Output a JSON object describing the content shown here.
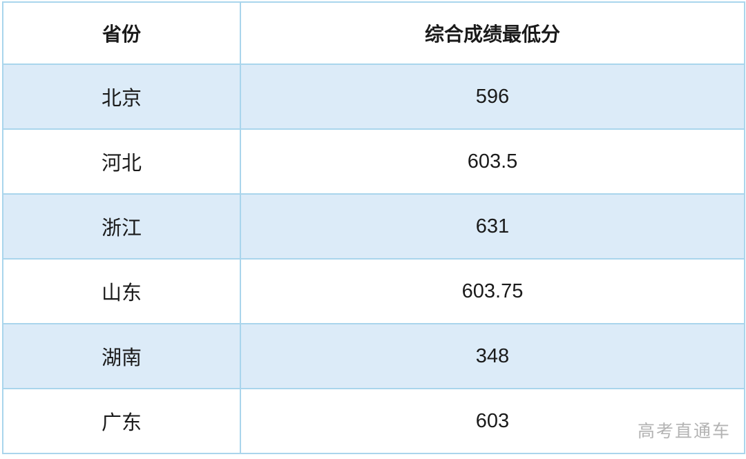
{
  "table": {
    "columns": [
      {
        "key": "province",
        "label": "省份"
      },
      {
        "key": "score",
        "label": "综合成绩最低分"
      }
    ],
    "rows": [
      {
        "province": "北京",
        "score": "596"
      },
      {
        "province": "河北",
        "score": "603.5"
      },
      {
        "province": "浙江",
        "score": "631"
      },
      {
        "province": "山东",
        "score": "603.75"
      },
      {
        "province": "湖南",
        "score": "348"
      },
      {
        "province": "广东",
        "score": "603"
      }
    ]
  },
  "watermark": "高考直通车",
  "colors": {
    "border": "#a9d5ec",
    "alt_row_fill": "#dcebf8",
    "row_fill": "#ffffff",
    "text": "#1a1a1a",
    "watermark": "#b3b3b3"
  }
}
